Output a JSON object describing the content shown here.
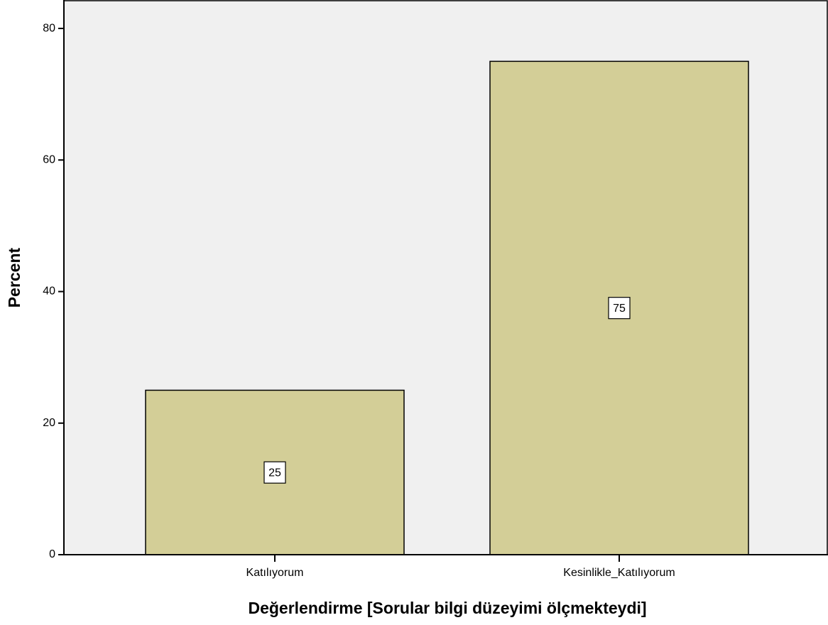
{
  "chart_data": {
    "type": "bar",
    "x_label": "Değerlendirme [Sorular bilgi düzeyimi ölçmekteydi]",
    "y_label": "Percent",
    "categories": [
      "Katılıyorum",
      "Kesinlikle_Katılıyorum"
    ],
    "values": [
      25,
      75
    ],
    "color": "#d3ce97",
    "ylim": [
      0,
      84
    ],
    "yticks": [
      0,
      20,
      40,
      60,
      80
    ],
    "grid": false
  }
}
